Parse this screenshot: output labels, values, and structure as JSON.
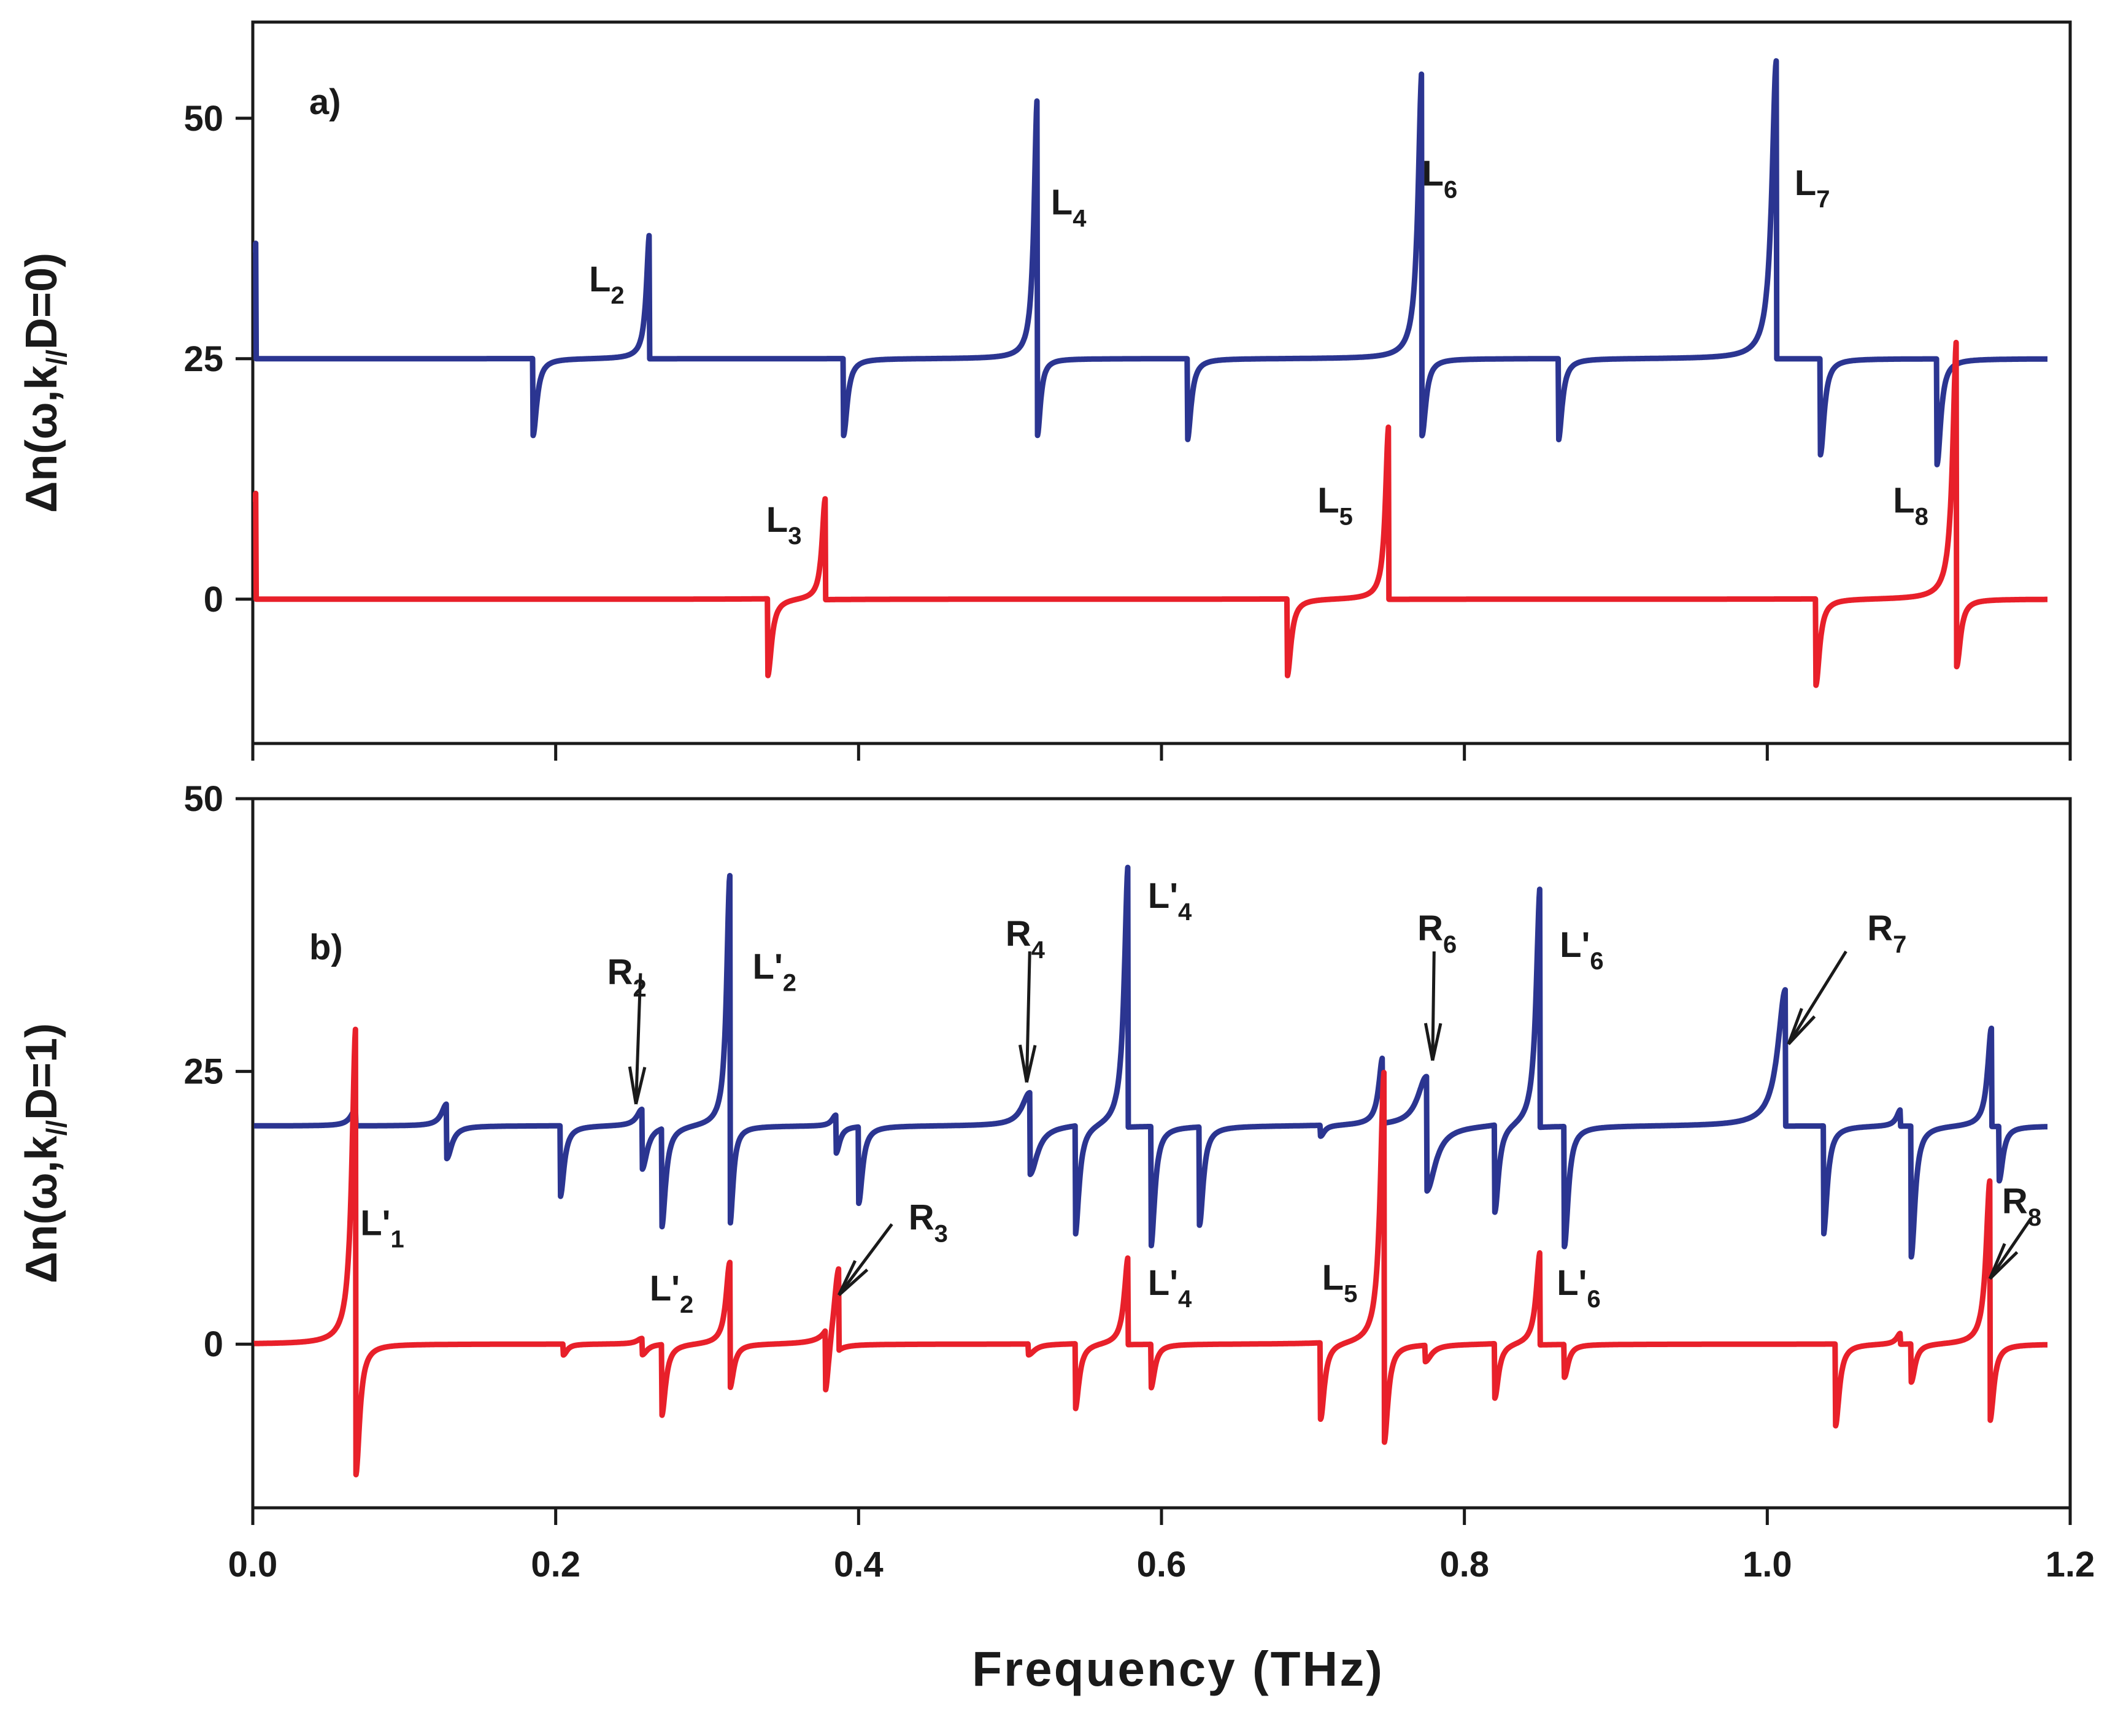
{
  "chart_data": [
    {
      "type": "line",
      "panel_label": "a)",
      "ylabel": "Δn(ω,k//D=0)",
      "ylabel_parts": {
        "prefix": "Δn(ω,k",
        "sub": "//",
        "suffix": "D=0)"
      },
      "xlabel": "",
      "xlim": [
        0.0,
        1.2
      ],
      "ylim": [
        -15,
        60
      ],
      "yticks": [
        0,
        25,
        50
      ],
      "ytick_labels": [
        "0",
        "25",
        "50"
      ],
      "grid": false,
      "baselines": {
        "blue": 25,
        "red": 0
      },
      "series": [
        {
          "name": "blue",
          "color": "#2b3591",
          "features": [
            {
              "x": 0.002,
              "up": 12,
              "down": 0,
              "w": 0.004
            },
            {
              "x": 0.185,
              "up": 0,
              "down": 8,
              "w": 0.003
            },
            {
              "x": 0.262,
              "up": 13,
              "down": 0,
              "w": 0.0025
            },
            {
              "x": 0.39,
              "up": 0,
              "down": 8,
              "w": 0.003
            },
            {
              "x": 0.518,
              "up": 27,
              "down": 8,
              "w": 0.0025
            },
            {
              "x": 0.617,
              "up": 0,
              "down": 8.5,
              "w": 0.003
            },
            {
              "x": 0.772,
              "up": 30,
              "down": 8,
              "w": 0.003
            },
            {
              "x": 0.862,
              "up": 0,
              "down": 8.5,
              "w": 0.003
            },
            {
              "x": 1.006,
              "up": 31,
              "down": 0,
              "w": 0.0035
            },
            {
              "x": 1.035,
              "up": 0,
              "down": 10,
              "w": 0.003
            },
            {
              "x": 1.112,
              "up": 0,
              "down": 11,
              "w": 0.003
            }
          ]
        },
        {
          "name": "red",
          "color": "#e8202a",
          "features": [
            {
              "x": 0.002,
              "up": 11,
              "down": 0,
              "w": 0.004
            },
            {
              "x": 0.34,
              "up": 0,
              "down": 8,
              "w": 0.003
            },
            {
              "x": 0.378,
              "up": 10.5,
              "down": 0,
              "w": 0.0025
            },
            {
              "x": 0.683,
              "up": 0,
              "down": 8,
              "w": 0.003
            },
            {
              "x": 0.75,
              "up": 18,
              "down": 0,
              "w": 0.0025
            },
            {
              "x": 1.032,
              "up": 0,
              "down": 9,
              "w": 0.003
            },
            {
              "x": 1.125,
              "up": 27,
              "down": 7,
              "w": 0.003
            }
          ]
        }
      ],
      "annotations": [
        {
          "base": "L",
          "sub": "2",
          "x": 0.222,
          "y": 32
        },
        {
          "base": "L",
          "sub": "4",
          "x": 0.527,
          "y": 40
        },
        {
          "base": "L",
          "sub": "6",
          "x": 0.772,
          "y": 43
        },
        {
          "base": "L",
          "sub": "7",
          "x": 1.018,
          "y": 42
        },
        {
          "base": "L",
          "sub": "3",
          "x": 0.339,
          "y": 7
        },
        {
          "base": "L",
          "sub": "5",
          "x": 0.703,
          "y": 9
        },
        {
          "base": "L",
          "sub": "8",
          "x": 1.083,
          "y": 9
        }
      ]
    },
    {
      "type": "line",
      "panel_label": "b)",
      "ylabel": "Δn(ω,k//D=1)",
      "ylabel_parts": {
        "prefix": "Δn(ω,k",
        "sub": "//",
        "suffix": "D=1)"
      },
      "xlabel": "Frequency (THz)",
      "xlim": [
        0.0,
        1.2
      ],
      "ylim": [
        -15,
        50
      ],
      "yticks": [
        0,
        25,
        50
      ],
      "ytick_labels": [
        "0",
        "25",
        "50"
      ],
      "xticks": [
        0.0,
        0.2,
        0.4,
        0.6,
        0.8,
        1.0,
        1.2
      ],
      "xtick_labels": [
        "0.0",
        "0.2",
        "0.4",
        "0.6",
        "0.8",
        "1.0",
        "1.2"
      ],
      "grid": false,
      "baselines": {
        "blue": 20,
        "red": 0
      },
      "series": [
        {
          "name": "blue",
          "color": "#2b3591",
          "features": [
            {
              "x": 0.068,
              "up": 1.5,
              "down": 0,
              "w": 0.004
            },
            {
              "x": 0.128,
              "up": 2,
              "down": 3,
              "w": 0.004
            },
            {
              "x": 0.203,
              "up": 0,
              "down": 6.5,
              "w": 0.003
            },
            {
              "x": 0.257,
              "up": 1.5,
              "down": 4,
              "w": 0.004
            },
            {
              "x": 0.27,
              "up": 0,
              "down": 9,
              "w": 0.003
            },
            {
              "x": 0.315,
              "up": 23,
              "down": 9,
              "w": 0.0025
            },
            {
              "x": 0.385,
              "up": 1,
              "down": 2.5,
              "w": 0.003
            },
            {
              "x": 0.4,
              "up": 0,
              "down": 7,
              "w": 0.003
            },
            {
              "x": 0.513,
              "up": 3,
              "down": 4.5,
              "w": 0.006
            },
            {
              "x": 0.543,
              "up": 0,
              "down": 10,
              "w": 0.003
            },
            {
              "x": 0.578,
              "up": 24,
              "down": 0,
              "w": 0.003
            },
            {
              "x": 0.593,
              "up": 0,
              "down": 11,
              "w": 0.003
            },
            {
              "x": 0.625,
              "up": 0,
              "down": 9,
              "w": 0.003
            },
            {
              "x": 0.705,
              "up": 0,
              "down": 1,
              "w": 0.003
            },
            {
              "x": 0.746,
              "up": 6,
              "down": 0,
              "w": 0.003
            },
            {
              "x": 0.775,
              "up": 4.5,
              "down": 6,
              "w": 0.007
            },
            {
              "x": 0.82,
              "up": 0,
              "down": 8,
              "w": 0.003
            },
            {
              "x": 0.85,
              "up": 22,
              "down": 0,
              "w": 0.003
            },
            {
              "x": 0.866,
              "up": 0,
              "down": 11,
              "w": 0.003
            },
            {
              "x": 1.012,
              "up": 12.5,
              "down": 0,
              "w": 0.006
            },
            {
              "x": 1.037,
              "up": 0,
              "down": 10,
              "w": 0.003
            },
            {
              "x": 1.088,
              "up": 1.5,
              "down": 0,
              "w": 0.003
            },
            {
              "x": 1.095,
              "up": 0,
              "down": 12,
              "w": 0.003
            },
            {
              "x": 1.148,
              "up": 9,
              "down": 0,
              "w": 0.003
            },
            {
              "x": 1.153,
              "up": 0,
              "down": 5,
              "w": 0.003
            }
          ]
        },
        {
          "name": "red",
          "color": "#e8202a",
          "features": [
            {
              "x": 0.068,
              "up": 29,
              "down": 12,
              "w": 0.003
            },
            {
              "x": 0.205,
              "up": 0,
              "down": 1,
              "w": 0.003
            },
            {
              "x": 0.257,
              "up": 0.5,
              "down": 1,
              "w": 0.004
            },
            {
              "x": 0.27,
              "up": 0,
              "down": 6.5,
              "w": 0.003
            },
            {
              "x": 0.315,
              "up": 7.5,
              "down": 4,
              "w": 0.003
            },
            {
              "x": 0.378,
              "up": 0,
              "down": 5.5,
              "w": 0.003
            },
            {
              "x": 0.387,
              "up": 7.5,
              "down": 0,
              "w": 0.004
            },
            {
              "x": 0.512,
              "up": 0,
              "down": 1,
              "w": 0.005
            },
            {
              "x": 0.543,
              "up": 0,
              "down": 6,
              "w": 0.003
            },
            {
              "x": 0.578,
              "up": 8,
              "down": 0,
              "w": 0.003
            },
            {
              "x": 0.593,
              "up": 0,
              "down": 4,
              "w": 0.003
            },
            {
              "x": 0.705,
              "up": 0,
              "down": 7,
              "w": 0.003
            },
            {
              "x": 0.747,
              "up": 25,
              "down": 9,
              "w": 0.003
            },
            {
              "x": 0.774,
              "up": 0,
              "down": 1.5,
              "w": 0.005
            },
            {
              "x": 0.82,
              "up": 0,
              "down": 5,
              "w": 0.003
            },
            {
              "x": 0.85,
              "up": 8.5,
              "down": 0,
              "w": 0.003
            },
            {
              "x": 0.866,
              "up": 0,
              "down": 3,
              "w": 0.003
            },
            {
              "x": 1.045,
              "up": 0,
              "down": 7.5,
              "w": 0.003
            },
            {
              "x": 1.088,
              "up": 1,
              "down": 0,
              "w": 0.003
            },
            {
              "x": 1.095,
              "up": 0,
              "down": 3.5,
              "w": 0.003
            },
            {
              "x": 1.147,
              "up": 15,
              "down": 7,
              "w": 0.003
            }
          ]
        }
      ],
      "annotations": [
        {
          "base": "L'",
          "sub": "1",
          "x": 0.071,
          "y": 10
        },
        {
          "base": "R",
          "sub": "2",
          "x": 0.234,
          "y": 33
        },
        {
          "base": "L'",
          "sub": "2",
          "x": 0.33,
          "y": 33.5
        },
        {
          "base": "R",
          "sub": "4",
          "x": 0.497,
          "y": 36.5
        },
        {
          "base": "L'",
          "sub": "4",
          "x": 0.591,
          "y": 40
        },
        {
          "base": "R",
          "sub": "6",
          "x": 0.769,
          "y": 37
        },
        {
          "base": "L'",
          "sub": "6",
          "x": 0.863,
          "y": 35.5
        },
        {
          "base": "R",
          "sub": "7",
          "x": 1.066,
          "y": 37
        },
        {
          "base": "R",
          "sub": "3",
          "x": 0.433,
          "y": 10.5
        },
        {
          "base": "L'",
          "sub": "2",
          "x": 0.262,
          "y": 4
        },
        {
          "base": "L'",
          "sub": "4",
          "x": 0.591,
          "y": 4.5
        },
        {
          "base": "L",
          "sub": "5",
          "x": 0.706,
          "y": 5
        },
        {
          "base": "L'",
          "sub": "6",
          "x": 0.861,
          "y": 4.5
        },
        {
          "base": "R",
          "sub": "8",
          "x": 1.155,
          "y": 12
        }
      ],
      "arrows": [
        {
          "from": [
            0.256,
            34
          ],
          "to": [
            0.253,
            22
          ],
          "type": "vertical"
        },
        {
          "from": [
            0.513,
            36
          ],
          "to": [
            0.511,
            24
          ],
          "type": "vertical"
        },
        {
          "from": [
            0.78,
            36
          ],
          "to": [
            0.779,
            26
          ],
          "type": "vertical"
        },
        {
          "from": [
            1.052,
            36
          ],
          "to": [
            1.014,
            27.5
          ],
          "type": "diagonal"
        },
        {
          "from": [
            0.422,
            11
          ],
          "to": [
            0.387,
            4.5
          ],
          "type": "diagonal"
        },
        {
          "from": [
            1.174,
            11.5
          ],
          "to": [
            1.147,
            6
          ],
          "type": "diagonal"
        }
      ]
    }
  ]
}
